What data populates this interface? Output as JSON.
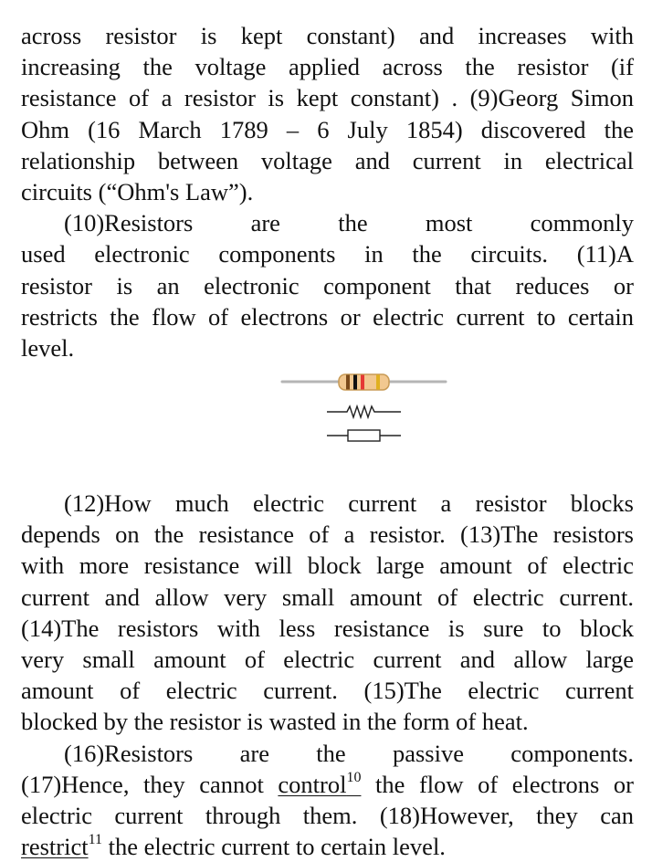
{
  "paragraph1": {
    "lines": [
      "across resistor is kept constant) and increases with",
      "increasing the voltage applied across the resistor (if",
      "resistance of a resistor is kept constant) . (9)Georg Simon",
      "Ohm (16 March 1789 – 6 July 1854) discovered the",
      "relationship between voltage and current in electrical",
      "circuits (“Ohm's Law”)."
    ]
  },
  "paragraph2": {
    "lines": [
      "(10)Resistors are the most commonly",
      "used electronic components in the circuits. (11)A",
      "resistor is an electronic component that reduces or",
      "restricts the flow of electrons or electric current to certain",
      "level."
    ]
  },
  "figure": {
    "colors": {
      "lead": "#b5b5b5",
      "body": "#f2c890",
      "body_outline": "#c89a55",
      "band1": "#7a4a1a",
      "band2": "#111111",
      "band3": "#e53935",
      "band4": "#e0b020",
      "symbol": "#222222"
    }
  },
  "paragraph3": {
    "lines": [
      "(12)How much electric current a resistor blocks",
      "depends on the resistance of a resistor. (13)The resistors",
      "with more resistance will block large amount of electric",
      "current and allow very small amount of electric current.",
      "(14)The resistors with less resistance is sure to block",
      "very small amount of electric current and allow large",
      "amount of electric current. (15)The electric current",
      "blocked by the resistor is wasted in the form of heat."
    ]
  },
  "paragraph4": {
    "line1": "(16)Resistors are the passive components.",
    "line2_pre": "(17)Hence, they cannot ",
    "line2_word": "control",
    "line2_sup": "10",
    "line2_post": " the flow of electrons or",
    "line3": "electric current through them. (18)However, they can",
    "line4_word": "restrict",
    "line4_sup": "11",
    "line4_post": " the electric current to certain level."
  }
}
